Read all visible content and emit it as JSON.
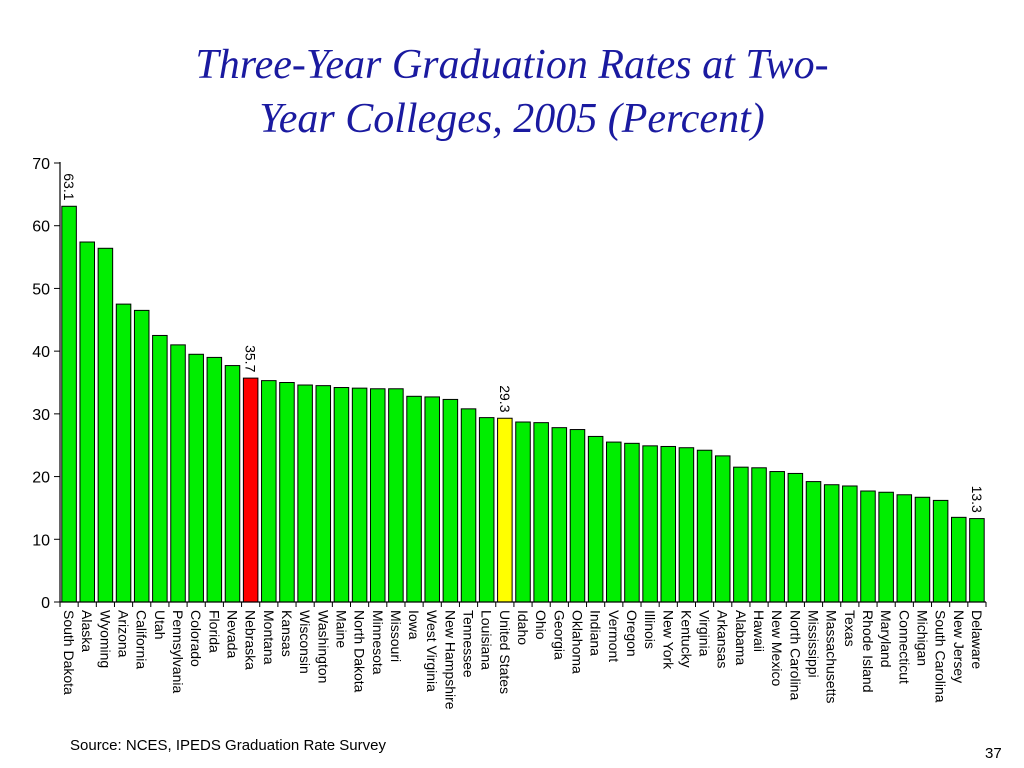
{
  "title_line1": "Three-Year Graduation Rates at Two-",
  "title_line2": "Year Colleges, 2005 (Percent)",
  "source": "Source:  NCES, IPEDS Graduation Rate Survey",
  "page_number": "37",
  "colors": {
    "bar_default": "#00ee00",
    "bar_highlight_red": "#ff0000",
    "bar_highlight_yellow": "#ffff00",
    "title": "#1a1aa0"
  },
  "chart_data": {
    "type": "bar",
    "title": "Three-Year Graduation Rates at Two-Year Colleges, 2005 (Percent)",
    "xlabel": "",
    "ylabel": "",
    "ylim": [
      0,
      70
    ],
    "yticks": [
      0,
      10,
      20,
      30,
      40,
      50,
      60,
      70
    ],
    "grid": false,
    "categories": [
      "South Dakota",
      "Alaska",
      "Wyoming",
      "Arizona",
      "California",
      "Utah",
      "Pennsylvania",
      "Colorado",
      "Florida",
      "Nevada",
      "Nebraska",
      "Montana",
      "Kansas",
      "Wisconsin",
      "Washington",
      "Maine",
      "North Dakota",
      "Minnesota",
      "Missouri",
      "Iowa",
      "West Virginia",
      "New Hampshire",
      "Tennessee",
      "Louisiana",
      "United States",
      "Idaho",
      "Ohio",
      "Georgia",
      "Oklahoma",
      "Indiana",
      "Vermont",
      "Oregon",
      "Illinois",
      "New York",
      "Kentucky",
      "Virginia",
      "Arkansas",
      "Alabama",
      "Hawaii",
      "New Mexico",
      "North Carolina",
      "Mississippi",
      "Massachusetts",
      "Texas",
      "Rhode Island",
      "Maryland",
      "Connecticut",
      "Michigan",
      "South Carolina",
      "New Jersey",
      "Delaware"
    ],
    "values": [
      63.1,
      57.4,
      56.4,
      47.5,
      46.5,
      42.5,
      41.0,
      39.5,
      39.0,
      37.7,
      35.7,
      35.3,
      35.0,
      34.6,
      34.5,
      34.2,
      34.1,
      34.0,
      34.0,
      32.8,
      32.7,
      32.3,
      30.8,
      29.4,
      29.3,
      28.7,
      28.6,
      27.8,
      27.5,
      26.4,
      25.5,
      25.3,
      24.9,
      24.8,
      24.6,
      24.2,
      23.3,
      21.5,
      21.4,
      20.8,
      20.5,
      19.2,
      18.7,
      18.5,
      17.7,
      17.5,
      17.1,
      16.7,
      16.2,
      13.5,
      13.3
    ],
    "data_labels": [
      {
        "category": "South Dakota",
        "text": "63.1"
      },
      {
        "category": "Nebraska",
        "text": "35.7"
      },
      {
        "category": "United States",
        "text": "29.3"
      },
      {
        "category": "Delaware",
        "text": "13.3"
      }
    ],
    "highlights": [
      {
        "category": "Nebraska",
        "color": "#ff0000"
      },
      {
        "category": "United States",
        "color": "#ffff00"
      }
    ]
  }
}
